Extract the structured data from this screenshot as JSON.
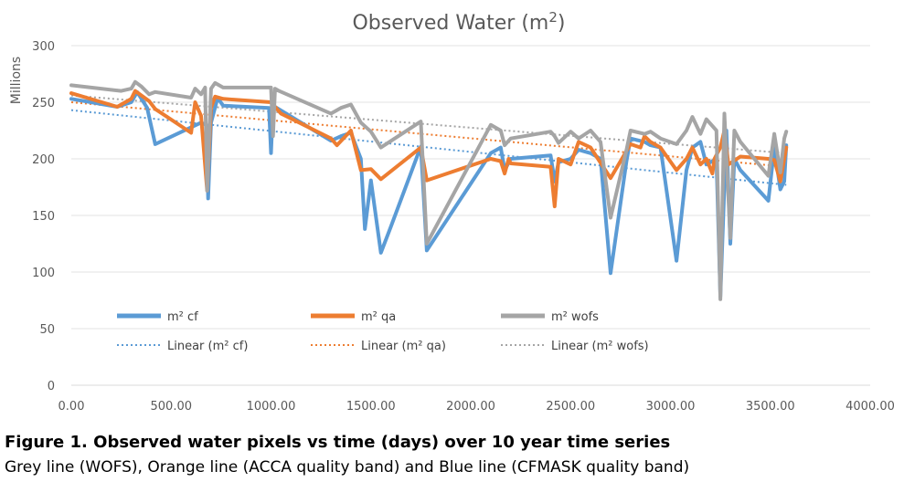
{
  "chart_data": {
    "type": "line",
    "title_main": "Observed Water (m",
    "title_sup": "2",
    "title_tail": ")",
    "ylabel": "Millions",
    "xlabel": "",
    "xlim": [
      0,
      4000
    ],
    "ylim": [
      0,
      300
    ],
    "x_ticks": [
      0,
      500,
      1000,
      1500,
      2000,
      2500,
      3000,
      3500,
      4000
    ],
    "x_tick_labels": [
      "0.00",
      "500.00",
      "1000.00",
      "1500.00",
      "2000.00",
      "2500.00",
      "3000.00",
      "3500.00",
      "4000.00"
    ],
    "y_ticks": [
      0,
      50,
      100,
      150,
      200,
      250,
      300
    ],
    "y_tick_labels": [
      "0",
      "50",
      "100",
      "150",
      "200",
      "250",
      "300"
    ],
    "grid": true,
    "legend_position": "inside-bottom",
    "series": [
      {
        "name": "m² cf",
        "color": "#5B9BD5",
        "points": [
          [
            0,
            253
          ],
          [
            230,
            246
          ],
          [
            300,
            250
          ],
          [
            330,
            259
          ],
          [
            380,
            245
          ],
          [
            420,
            213
          ],
          [
            650,
            232
          ],
          [
            675,
            230
          ],
          [
            685,
            165
          ],
          [
            700,
            232
          ],
          [
            730,
            252
          ],
          [
            740,
            252
          ],
          [
            760,
            247
          ],
          [
            990,
            245
          ],
          [
            1000,
            205
          ],
          [
            1010,
            247
          ],
          [
            1300,
            216
          ],
          [
            1350,
            220
          ],
          [
            1400,
            223
          ],
          [
            1450,
            200
          ],
          [
            1470,
            138
          ],
          [
            1500,
            181
          ],
          [
            1550,
            117
          ],
          [
            1600,
            140
          ],
          [
            1750,
            211
          ],
          [
            1780,
            119
          ],
          [
            2100,
            205
          ],
          [
            2150,
            210
          ],
          [
            2170,
            190
          ],
          [
            2200,
            200
          ],
          [
            2400,
            203
          ],
          [
            2420,
            180
          ],
          [
            2440,
            197
          ],
          [
            2500,
            200
          ],
          [
            2540,
            208
          ],
          [
            2600,
            205
          ],
          [
            2650,
            200
          ],
          [
            2700,
            99
          ],
          [
            2780,
            198
          ],
          [
            2800,
            218
          ],
          [
            2870,
            215
          ],
          [
            2900,
            212
          ],
          [
            2950,
            210
          ],
          [
            3030,
            110
          ],
          [
            3080,
            190
          ],
          [
            3110,
            210
          ],
          [
            3150,
            215
          ],
          [
            3180,
            195
          ],
          [
            3230,
            200
          ],
          [
            3250,
            78
          ],
          [
            3280,
            225
          ],
          [
            3300,
            125
          ],
          [
            3320,
            200
          ],
          [
            3350,
            190
          ],
          [
            3490,
            163
          ],
          [
            3520,
            210
          ],
          [
            3550,
            173
          ],
          [
            3570,
            180
          ],
          [
            3580,
            212
          ]
        ]
      },
      {
        "name": "m² qa",
        "color": "#ED7D31",
        "points": [
          [
            0,
            258
          ],
          [
            230,
            246
          ],
          [
            300,
            253
          ],
          [
            320,
            260
          ],
          [
            390,
            251
          ],
          [
            420,
            244
          ],
          [
            600,
            223
          ],
          [
            620,
            250
          ],
          [
            650,
            238
          ],
          [
            680,
            172
          ],
          [
            700,
            245
          ],
          [
            720,
            255
          ],
          [
            760,
            253
          ],
          [
            1000,
            250
          ],
          [
            1050,
            240
          ],
          [
            1300,
            218
          ],
          [
            1330,
            212
          ],
          [
            1400,
            225
          ],
          [
            1450,
            190
          ],
          [
            1500,
            191
          ],
          [
            1550,
            182
          ],
          [
            1750,
            210
          ],
          [
            1780,
            181
          ],
          [
            2100,
            200
          ],
          [
            2150,
            198
          ],
          [
            2170,
            187
          ],
          [
            2190,
            200
          ],
          [
            2200,
            196
          ],
          [
            2400,
            193
          ],
          [
            2420,
            158
          ],
          [
            2440,
            200
          ],
          [
            2500,
            195
          ],
          [
            2540,
            215
          ],
          [
            2600,
            210
          ],
          [
            2700,
            183
          ],
          [
            2800,
            213
          ],
          [
            2850,
            210
          ],
          [
            2870,
            220
          ],
          [
            2900,
            215
          ],
          [
            2950,
            210
          ],
          [
            3030,
            190
          ],
          [
            3080,
            200
          ],
          [
            3110,
            210
          ],
          [
            3150,
            195
          ],
          [
            3180,
            200
          ],
          [
            3210,
            187
          ],
          [
            3220,
            200
          ],
          [
            3250,
            210
          ],
          [
            3270,
            225
          ],
          [
            3290,
            195
          ],
          [
            3350,
            202
          ],
          [
            3490,
            200
          ],
          [
            3520,
            199
          ],
          [
            3550,
            180
          ],
          [
            3580,
            210
          ]
        ]
      },
      {
        "name": "m² wofs",
        "color": "#A5A5A5",
        "points": [
          [
            0,
            265
          ],
          [
            250,
            260
          ],
          [
            300,
            262
          ],
          [
            320,
            268
          ],
          [
            350,
            264
          ],
          [
            390,
            257
          ],
          [
            420,
            259
          ],
          [
            600,
            254
          ],
          [
            620,
            262
          ],
          [
            650,
            257
          ],
          [
            670,
            263
          ],
          [
            680,
            172
          ],
          [
            700,
            262
          ],
          [
            720,
            267
          ],
          [
            760,
            263
          ],
          [
            1000,
            263
          ],
          [
            1010,
            220
          ],
          [
            1020,
            262
          ],
          [
            1040,
            260
          ],
          [
            1300,
            240
          ],
          [
            1350,
            245
          ],
          [
            1400,
            248
          ],
          [
            1450,
            232
          ],
          [
            1500,
            224
          ],
          [
            1550,
            210
          ],
          [
            1750,
            233
          ],
          [
            1780,
            125
          ],
          [
            2100,
            230
          ],
          [
            2150,
            225
          ],
          [
            2170,
            212
          ],
          [
            2200,
            218
          ],
          [
            2400,
            224
          ],
          [
            2420,
            220
          ],
          [
            2440,
            214
          ],
          [
            2500,
            224
          ],
          [
            2540,
            218
          ],
          [
            2600,
            225
          ],
          [
            2650,
            215
          ],
          [
            2700,
            148
          ],
          [
            2780,
            208
          ],
          [
            2800,
            225
          ],
          [
            2870,
            222
          ],
          [
            2900,
            224
          ],
          [
            2950,
            218
          ],
          [
            3030,
            213
          ],
          [
            3080,
            225
          ],
          [
            3110,
            237
          ],
          [
            3150,
            222
          ],
          [
            3180,
            235
          ],
          [
            3230,
            225
          ],
          [
            3250,
            76
          ],
          [
            3270,
            240
          ],
          [
            3300,
            130
          ],
          [
            3320,
            225
          ],
          [
            3350,
            215
          ],
          [
            3490,
            185
          ],
          [
            3520,
            222
          ],
          [
            3550,
            188
          ],
          [
            3570,
            218
          ],
          [
            3580,
            224
          ]
        ]
      }
    ],
    "trendlines": [
      {
        "name": "Linear (m² cf)",
        "color": "#5B9BD5",
        "start": [
          0,
          243
        ],
        "end": [
          3580,
          177
        ]
      },
      {
        "name": "Linear (m² qa)",
        "color": "#ED7D31",
        "start": [
          0,
          250
        ],
        "end": [
          3580,
          193
        ]
      },
      {
        "name": "Linear (m² wofs)",
        "color": "#A5A5A5",
        "start": [
          0,
          256
        ],
        "end": [
          3580,
          205
        ]
      }
    ]
  },
  "caption": {
    "title": "Figure 1. Observed water pixels vs time (days) over 10 year time series",
    "text": "Grey line (WOFS), Orange line (ACCA quality band) and Blue line (CFMASK quality band)"
  }
}
